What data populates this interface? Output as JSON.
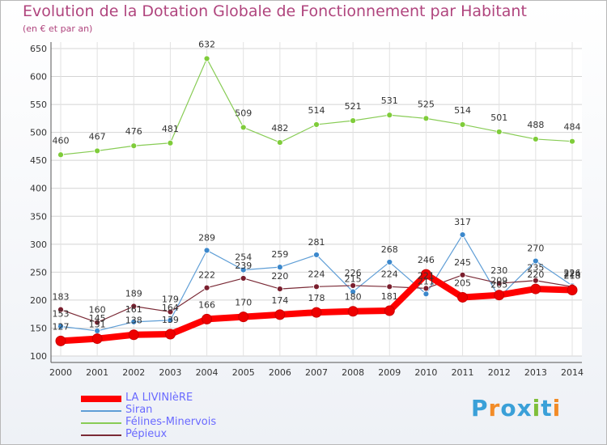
{
  "chart_data": {
    "type": "line",
    "title": "Evolution de la Dotation Globale de Fonctionnement par Habitant",
    "subtitle": "(en € et par an)",
    "x": [
      "2000",
      "2001",
      "2002",
      "2003",
      "2004",
      "2005",
      "2006",
      "2007",
      "2008",
      "2009",
      "2010",
      "2011",
      "2012",
      "2013",
      "2014"
    ],
    "y_ticks": [
      100,
      150,
      200,
      250,
      300,
      350,
      400,
      450,
      500,
      550,
      600,
      650
    ],
    "ylim": [
      100,
      650
    ],
    "grid": true,
    "legend_position": "bottom-left",
    "series": [
      {
        "name": "Félines-Minervois",
        "color": "#88cc55",
        "marker": "#7fcc3a",
        "line_width": 1.2,
        "values": [
          460,
          467,
          476,
          481,
          632,
          509,
          482,
          514,
          521,
          531,
          525,
          514,
          501,
          488,
          484
        ]
      },
      {
        "name": "Siran",
        "color": "#5f9ed6",
        "marker": "#3c88cc",
        "line_width": 1.2,
        "values": [
          153,
          145,
          161,
          164,
          289,
          254,
          259,
          281,
          215,
          268,
          211,
          317,
          205,
          270,
          226
        ]
      },
      {
        "name": "Pépieux",
        "color": "#7a2a36",
        "marker": "#7a1f2e",
        "line_width": 1.2,
        "values": [
          183,
          160,
          189,
          179,
          222,
          239,
          220,
          224,
          226,
          224,
          221,
          245,
          230,
          235,
          224
        ]
      },
      {
        "name": "LA LIVINIèRE",
        "color": "#ff0000",
        "marker": "#ee0000",
        "line_width": 8,
        "values": [
          127,
          131,
          138,
          139,
          166,
          170,
          174,
          178,
          180,
          181,
          246,
          205,
          209,
          220,
          218
        ]
      }
    ],
    "data_labels": [
      [
        460,
        467,
        476,
        481,
        632,
        509,
        482,
        514,
        521,
        531,
        525,
        514,
        501,
        488,
        484
      ],
      [
        153,
        145,
        161,
        164,
        289,
        254,
        259,
        281,
        215,
        268,
        211,
        317,
        205,
        270,
        226
      ],
      [
        183,
        160,
        189,
        179,
        222,
        239,
        220,
        224,
        226,
        224,
        221,
        245,
        230,
        235,
        224
      ],
      [
        127,
        131,
        138,
        139,
        166,
        170,
        174,
        178,
        180,
        181,
        246,
        205,
        209,
        220,
        218
      ]
    ]
  },
  "legend": {
    "items": [
      {
        "label": "LA LIVINIèRE",
        "color": "#ff0000"
      },
      {
        "label": "Siran",
        "color": "#5f9ed6"
      },
      {
        "label": "Félines-Minervois",
        "color": "#88cc55"
      },
      {
        "label": "Pépieux",
        "color": "#7a2a36"
      }
    ]
  },
  "logo": {
    "text": "Proxiti",
    "colors": [
      "#3aa0d8",
      "#f28c28",
      "#3aa0d8",
      "#3aa0d8",
      "#7fbf3a",
      "#3aa0d8",
      "#f28c28"
    ]
  }
}
